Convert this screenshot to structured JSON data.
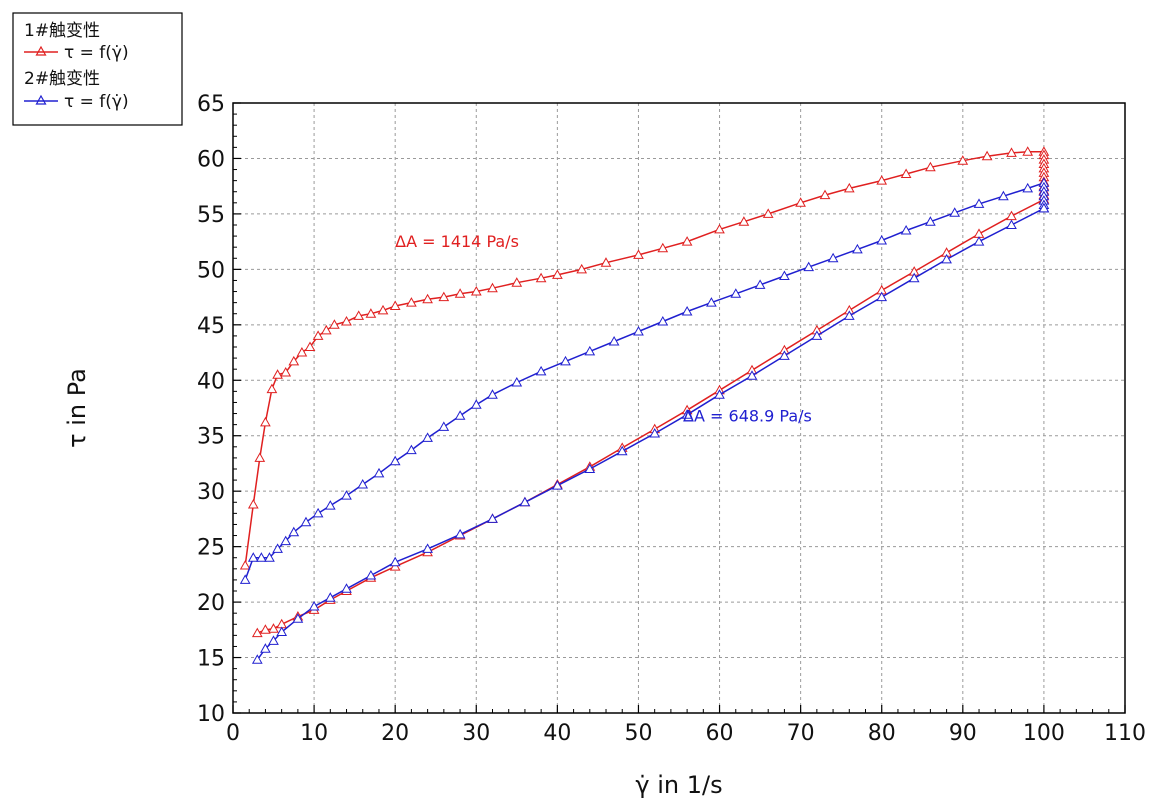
{
  "chart_data": {
    "type": "line",
    "title": "",
    "xlabel": "γ̇ in 1/s",
    "ylabel": "τ in Pa",
    "xlim": [
      0,
      110
    ],
    "ylim": [
      10,
      65
    ],
    "xticks": [
      "0",
      "10",
      "20",
      "30",
      "40",
      "50",
      "60",
      "70",
      "80",
      "90",
      "100",
      "110"
    ],
    "yticks": [
      "10",
      "15",
      "20",
      "25",
      "30",
      "35",
      "40",
      "45",
      "50",
      "55",
      "60",
      "65"
    ],
    "grid": true,
    "legend_placement": "top-left",
    "legend": [
      {
        "group": "1#触变性",
        "label": "τ = f(γ̇)",
        "color": "#e02020"
      },
      {
        "group": "2#触变性",
        "label": "τ = f(γ̇)",
        "color": "#2020d0"
      }
    ],
    "annotations": [
      {
        "text": "ΔA = 1414 Pa/s",
        "x": 20,
        "y": 52,
        "color": "#e02020"
      },
      {
        "text": "ΔA = 648.9 Pa/s",
        "x": 55.5,
        "y": 36.3,
        "color": "#2020d0"
      }
    ],
    "series": [
      {
        "name": "1#触变性",
        "color": "#e02020",
        "up": [
          [
            1.5,
            23.3
          ],
          [
            2.5,
            28.8
          ],
          [
            3.3,
            33
          ],
          [
            4,
            36.2
          ],
          [
            4.8,
            39.2
          ],
          [
            5.5,
            40.5
          ],
          [
            6.5,
            40.7
          ],
          [
            7.5,
            41.7
          ],
          [
            8.5,
            42.5
          ],
          [
            9.5,
            43
          ],
          [
            10.5,
            44
          ],
          [
            11.5,
            44.5
          ],
          [
            12.5,
            45
          ],
          [
            14,
            45.3
          ],
          [
            15.5,
            45.8
          ],
          [
            17,
            46
          ],
          [
            18.5,
            46.3
          ],
          [
            20,
            46.7
          ],
          [
            22,
            47
          ],
          [
            24,
            47.3
          ],
          [
            26,
            47.5
          ],
          [
            28,
            47.8
          ],
          [
            30,
            48
          ],
          [
            32,
            48.3
          ],
          [
            35,
            48.8
          ],
          [
            38,
            49.2
          ],
          [
            40,
            49.5
          ],
          [
            43,
            50
          ],
          [
            46,
            50.6
          ],
          [
            50,
            51.3
          ],
          [
            53,
            51.9
          ],
          [
            56,
            52.5
          ],
          [
            60,
            53.6
          ],
          [
            63,
            54.3
          ],
          [
            66,
            55
          ],
          [
            70,
            56
          ],
          [
            73,
            56.7
          ],
          [
            76,
            57.3
          ],
          [
            80,
            58
          ],
          [
            83,
            58.6
          ],
          [
            86,
            59.2
          ],
          [
            90,
            59.8
          ],
          [
            93,
            60.2
          ],
          [
            96,
            60.5
          ],
          [
            98,
            60.6
          ],
          [
            100,
            60.6
          ]
        ],
        "hold": [
          60.3,
          59.9,
          59.5,
          59.1,
          58.7,
          58.3,
          57.9,
          57.5,
          57.1,
          56.7,
          56.3
        ],
        "down": [
          [
            100,
            56.3
          ],
          [
            96,
            54.8
          ],
          [
            92,
            53.2
          ],
          [
            88,
            51.5
          ],
          [
            84,
            49.8
          ],
          [
            80,
            48.1
          ],
          [
            76,
            46.3
          ],
          [
            72,
            44.5
          ],
          [
            68,
            42.7
          ],
          [
            64,
            40.9
          ],
          [
            60,
            39.1
          ],
          [
            56,
            37.3
          ],
          [
            52,
            35.6
          ],
          [
            48,
            33.9
          ],
          [
            44,
            32.2
          ],
          [
            40,
            30.6
          ],
          [
            36,
            29
          ],
          [
            32,
            27.5
          ],
          [
            28,
            26
          ],
          [
            24,
            24.5
          ],
          [
            20,
            23.2
          ],
          [
            17,
            22.2
          ],
          [
            14,
            21
          ],
          [
            12,
            20.2
          ],
          [
            10,
            19.3
          ],
          [
            8,
            18.7
          ],
          [
            6,
            18
          ],
          [
            5,
            17.6
          ],
          [
            4,
            17.5
          ],
          [
            3,
            17.2
          ]
        ]
      },
      {
        "name": "2#触变性",
        "color": "#2020d0",
        "up": [
          [
            1.5,
            22
          ],
          [
            2.5,
            24
          ],
          [
            3.5,
            24
          ],
          [
            4.5,
            24
          ],
          [
            5.5,
            24.8
          ],
          [
            6.5,
            25.5
          ],
          [
            7.5,
            26.3
          ],
          [
            9,
            27.2
          ],
          [
            10.5,
            28
          ],
          [
            12,
            28.7
          ],
          [
            14,
            29.6
          ],
          [
            16,
            30.6
          ],
          [
            18,
            31.6
          ],
          [
            20,
            32.7
          ],
          [
            22,
            33.7
          ],
          [
            24,
            34.8
          ],
          [
            26,
            35.8
          ],
          [
            28,
            36.8
          ],
          [
            30,
            37.8
          ],
          [
            32,
            38.7
          ],
          [
            35,
            39.8
          ],
          [
            38,
            40.8
          ],
          [
            41,
            41.7
          ],
          [
            44,
            42.6
          ],
          [
            47,
            43.5
          ],
          [
            50,
            44.4
          ],
          [
            53,
            45.3
          ],
          [
            56,
            46.2
          ],
          [
            59,
            47
          ],
          [
            62,
            47.8
          ],
          [
            65,
            48.6
          ],
          [
            68,
            49.4
          ],
          [
            71,
            50.2
          ],
          [
            74,
            51
          ],
          [
            77,
            51.8
          ],
          [
            80,
            52.6
          ],
          [
            83,
            53.5
          ],
          [
            86,
            54.3
          ],
          [
            89,
            55.1
          ],
          [
            92,
            55.9
          ],
          [
            95,
            56.6
          ],
          [
            98,
            57.3
          ],
          [
            100,
            57.8
          ]
        ],
        "hold": [
          57.4,
          57,
          56.6,
          56.2,
          55.8,
          55.5
        ],
        "down": [
          [
            100,
            55.5
          ],
          [
            96,
            54
          ],
          [
            92,
            52.5
          ],
          [
            88,
            50.9
          ],
          [
            84,
            49.2
          ],
          [
            80,
            47.5
          ],
          [
            76,
            45.8
          ],
          [
            72,
            44
          ],
          [
            68,
            42.2
          ],
          [
            64,
            40.4
          ],
          [
            60,
            38.7
          ],
          [
            56,
            36.9
          ],
          [
            52,
            35.2
          ],
          [
            48,
            33.6
          ],
          [
            44,
            32
          ],
          [
            40,
            30.5
          ],
          [
            36,
            29
          ],
          [
            32,
            27.5
          ],
          [
            28,
            26.1
          ],
          [
            24,
            24.8
          ],
          [
            20,
            23.6
          ],
          [
            17,
            22.4
          ],
          [
            14,
            21.2
          ],
          [
            12,
            20.4
          ],
          [
            10,
            19.6
          ],
          [
            8,
            18.5
          ],
          [
            6,
            17.3
          ],
          [
            5,
            16.5
          ],
          [
            4,
            15.8
          ],
          [
            3,
            14.8
          ]
        ]
      }
    ]
  }
}
